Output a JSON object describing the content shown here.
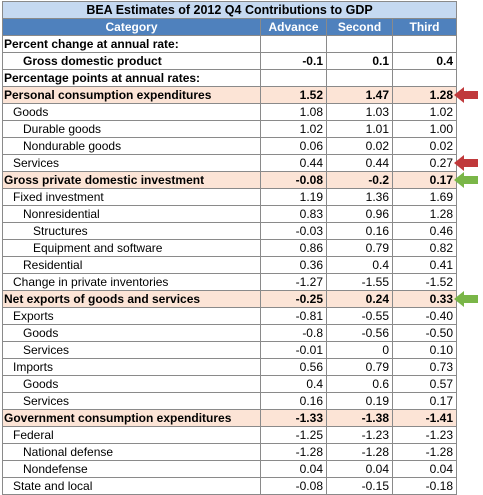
{
  "title": "BEA Estimates of 2012 Q4 Contributions to GDP",
  "headers": [
    "Category",
    "Advance",
    "Second",
    "Third"
  ],
  "rows": [
    {
      "type": "section",
      "label": "Percent change at annual rate:",
      "indent": 0,
      "values": [
        "",
        "",
        ""
      ]
    },
    {
      "type": "bold",
      "label": "Gross domestic product",
      "indent": 2,
      "values": [
        "-0.1",
        "0.1",
        "0.4"
      ]
    },
    {
      "type": "section",
      "label": "Percentage points at annual rates:",
      "indent": 0,
      "values": [
        "",
        "",
        ""
      ]
    },
    {
      "type": "highlight",
      "label": "Personal consumption expenditures",
      "indent": 0,
      "values": [
        "1.52",
        "1.47",
        "1.28"
      ],
      "arrow": "red"
    },
    {
      "type": "normal",
      "label": "Goods",
      "indent": 1,
      "values": [
        "1.08",
        "1.03",
        "1.02"
      ]
    },
    {
      "type": "normal",
      "label": "Durable goods",
      "indent": 2,
      "values": [
        "1.02",
        "1.01",
        "1.00"
      ]
    },
    {
      "type": "normal",
      "label": "Nondurable goods",
      "indent": 2,
      "values": [
        "0.06",
        "0.02",
        "0.02"
      ]
    },
    {
      "type": "normal",
      "label": "Services",
      "indent": 1,
      "values": [
        "0.44",
        "0.44",
        "0.27"
      ],
      "arrow": "red"
    },
    {
      "type": "highlight",
      "label": "Gross private domestic investment",
      "indent": 0,
      "values": [
        "-0.08",
        "-0.2",
        "0.17"
      ],
      "arrow": "green"
    },
    {
      "type": "normal",
      "label": "Fixed investment",
      "indent": 1,
      "values": [
        "1.19",
        "1.36",
        "1.69"
      ]
    },
    {
      "type": "normal",
      "label": "Nonresidential",
      "indent": 2,
      "values": [
        "0.83",
        "0.96",
        "1.28"
      ]
    },
    {
      "type": "normal",
      "label": "Structures",
      "indent": 3,
      "values": [
        "-0.03",
        "0.16",
        "0.46"
      ]
    },
    {
      "type": "normal",
      "label": "Equipment and software",
      "indent": 3,
      "values": [
        "0.86",
        "0.79",
        "0.82"
      ]
    },
    {
      "type": "normal",
      "label": "Residential",
      "indent": 2,
      "values": [
        "0.36",
        "0.4",
        "0.41"
      ]
    },
    {
      "type": "normal",
      "label": "Change in private inventories",
      "indent": 1,
      "values": [
        "-1.27",
        "-1.55",
        "-1.52"
      ]
    },
    {
      "type": "highlight",
      "label": "Net exports of goods and services",
      "indent": 0,
      "values": [
        "-0.25",
        "0.24",
        "0.33"
      ],
      "arrow": "green"
    },
    {
      "type": "normal",
      "label": "Exports",
      "indent": 1,
      "values": [
        "-0.81",
        "-0.55",
        "-0.40"
      ]
    },
    {
      "type": "normal",
      "label": "Goods",
      "indent": 2,
      "values": [
        "-0.8",
        "-0.56",
        "-0.50"
      ]
    },
    {
      "type": "normal",
      "label": "Services",
      "indent": 2,
      "values": [
        "-0.01",
        "0",
        "0.10"
      ]
    },
    {
      "type": "normal",
      "label": "Imports",
      "indent": 1,
      "values": [
        "0.56",
        "0.79",
        "0.73"
      ]
    },
    {
      "type": "normal",
      "label": "Goods",
      "indent": 2,
      "values": [
        "0.4",
        "0.6",
        "0.57"
      ]
    },
    {
      "type": "normal",
      "label": "Services",
      "indent": 2,
      "values": [
        "0.16",
        "0.19",
        "0.17"
      ]
    },
    {
      "type": "highlight",
      "label": "Government consumption expenditures",
      "indent": 0,
      "values": [
        "-1.33",
        "-1.38",
        "-1.41"
      ]
    },
    {
      "type": "normal",
      "label": "Federal",
      "indent": 1,
      "values": [
        "-1.25",
        "-1.23",
        "-1.23"
      ]
    },
    {
      "type": "normal",
      "label": "National defense",
      "indent": 2,
      "values": [
        "-1.28",
        "-1.28",
        "-1.28"
      ]
    },
    {
      "type": "normal",
      "label": "Nondefense",
      "indent": 2,
      "values": [
        "0.04",
        "0.04",
        "0.04"
      ]
    },
    {
      "type": "normal",
      "label": "State and local",
      "indent": 1,
      "values": [
        "-0.08",
        "-0.15",
        "-0.18"
      ]
    }
  ],
  "colors": {
    "header_bg": "#4f81bd",
    "title_bg": "#c5d9f1",
    "highlight_bg": "#fce4d6",
    "arrow_red": "#c0393b",
    "arrow_green": "#7ab648"
  }
}
